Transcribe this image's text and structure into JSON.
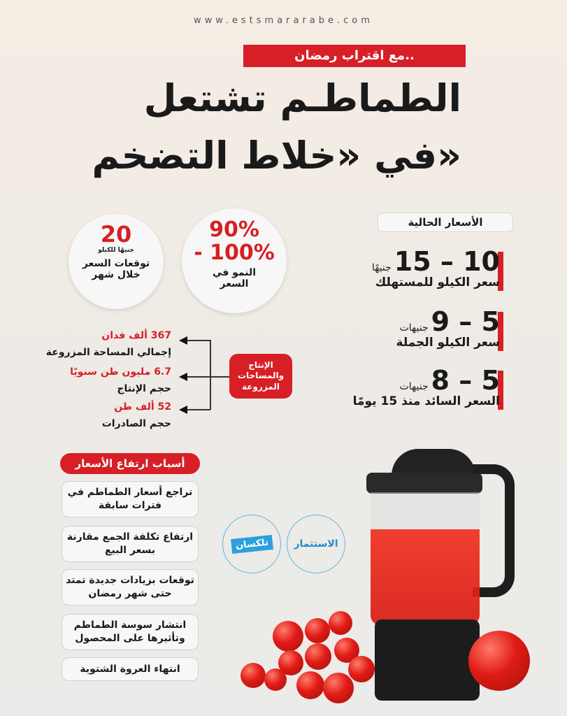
{
  "site": "www.estsmararabe.com",
  "kicker": "مع اقتراب رمضان..",
  "title": {
    "line1": "الطماطـم تشتعل",
    "line2": "في «خلاط التضخم»"
  },
  "current_prices": {
    "heading": "الأسعار الحالية",
    "items": [
      {
        "value": "10 – 15",
        "unit": "جنيهًا",
        "label": "سعر الكيلو للمستهلك"
      },
      {
        "value": "5 – 9",
        "unit": "جنيهات",
        "label": "سعر الكيلو الجملة"
      },
      {
        "value": "5 – 8",
        "unit": "جنيهات",
        "label": "السعر السائد منذ 15 يومًا"
      }
    ]
  },
  "growth": {
    "value1": "90%",
    "value2": "- 100%",
    "label": "النمو في السعر"
  },
  "forecast": {
    "value": "20",
    "unit": "جنيهًا للكيلو",
    "label": "توقعات السعر خلال شهر"
  },
  "production": {
    "heading": "الإنتاج والمساحات المزروعة",
    "items": [
      {
        "value": "367 ألف فدان",
        "label": "إجمالي المساحة المزروعة"
      },
      {
        "value": "6.7 مليون طن سنويًا",
        "label": "حجم الإنتاج"
      },
      {
        "value": "52 ألف طن",
        "label": "حجم الصادرات"
      }
    ]
  },
  "reasons": {
    "heading": "أسباب ارتفاع الأسعار",
    "items": [
      "تراجع أسعار الطماطم في فترات سابقة",
      "ارتفاع تكلفة الجمع مقارنة بسعر البيع",
      "توقعات بزيادات جديدة تمتد حتى شهر رمضان",
      "انتشار سوسة الطماطم وتأثيرها على المحصول",
      "انتهاء العروة الشتوية"
    ]
  },
  "logos": {
    "telexan": "تلكسان",
    "estesmar": "الاستثمار"
  },
  "colors": {
    "accent": "#d71f26",
    "logo_ring": "#5bb8e6"
  }
}
